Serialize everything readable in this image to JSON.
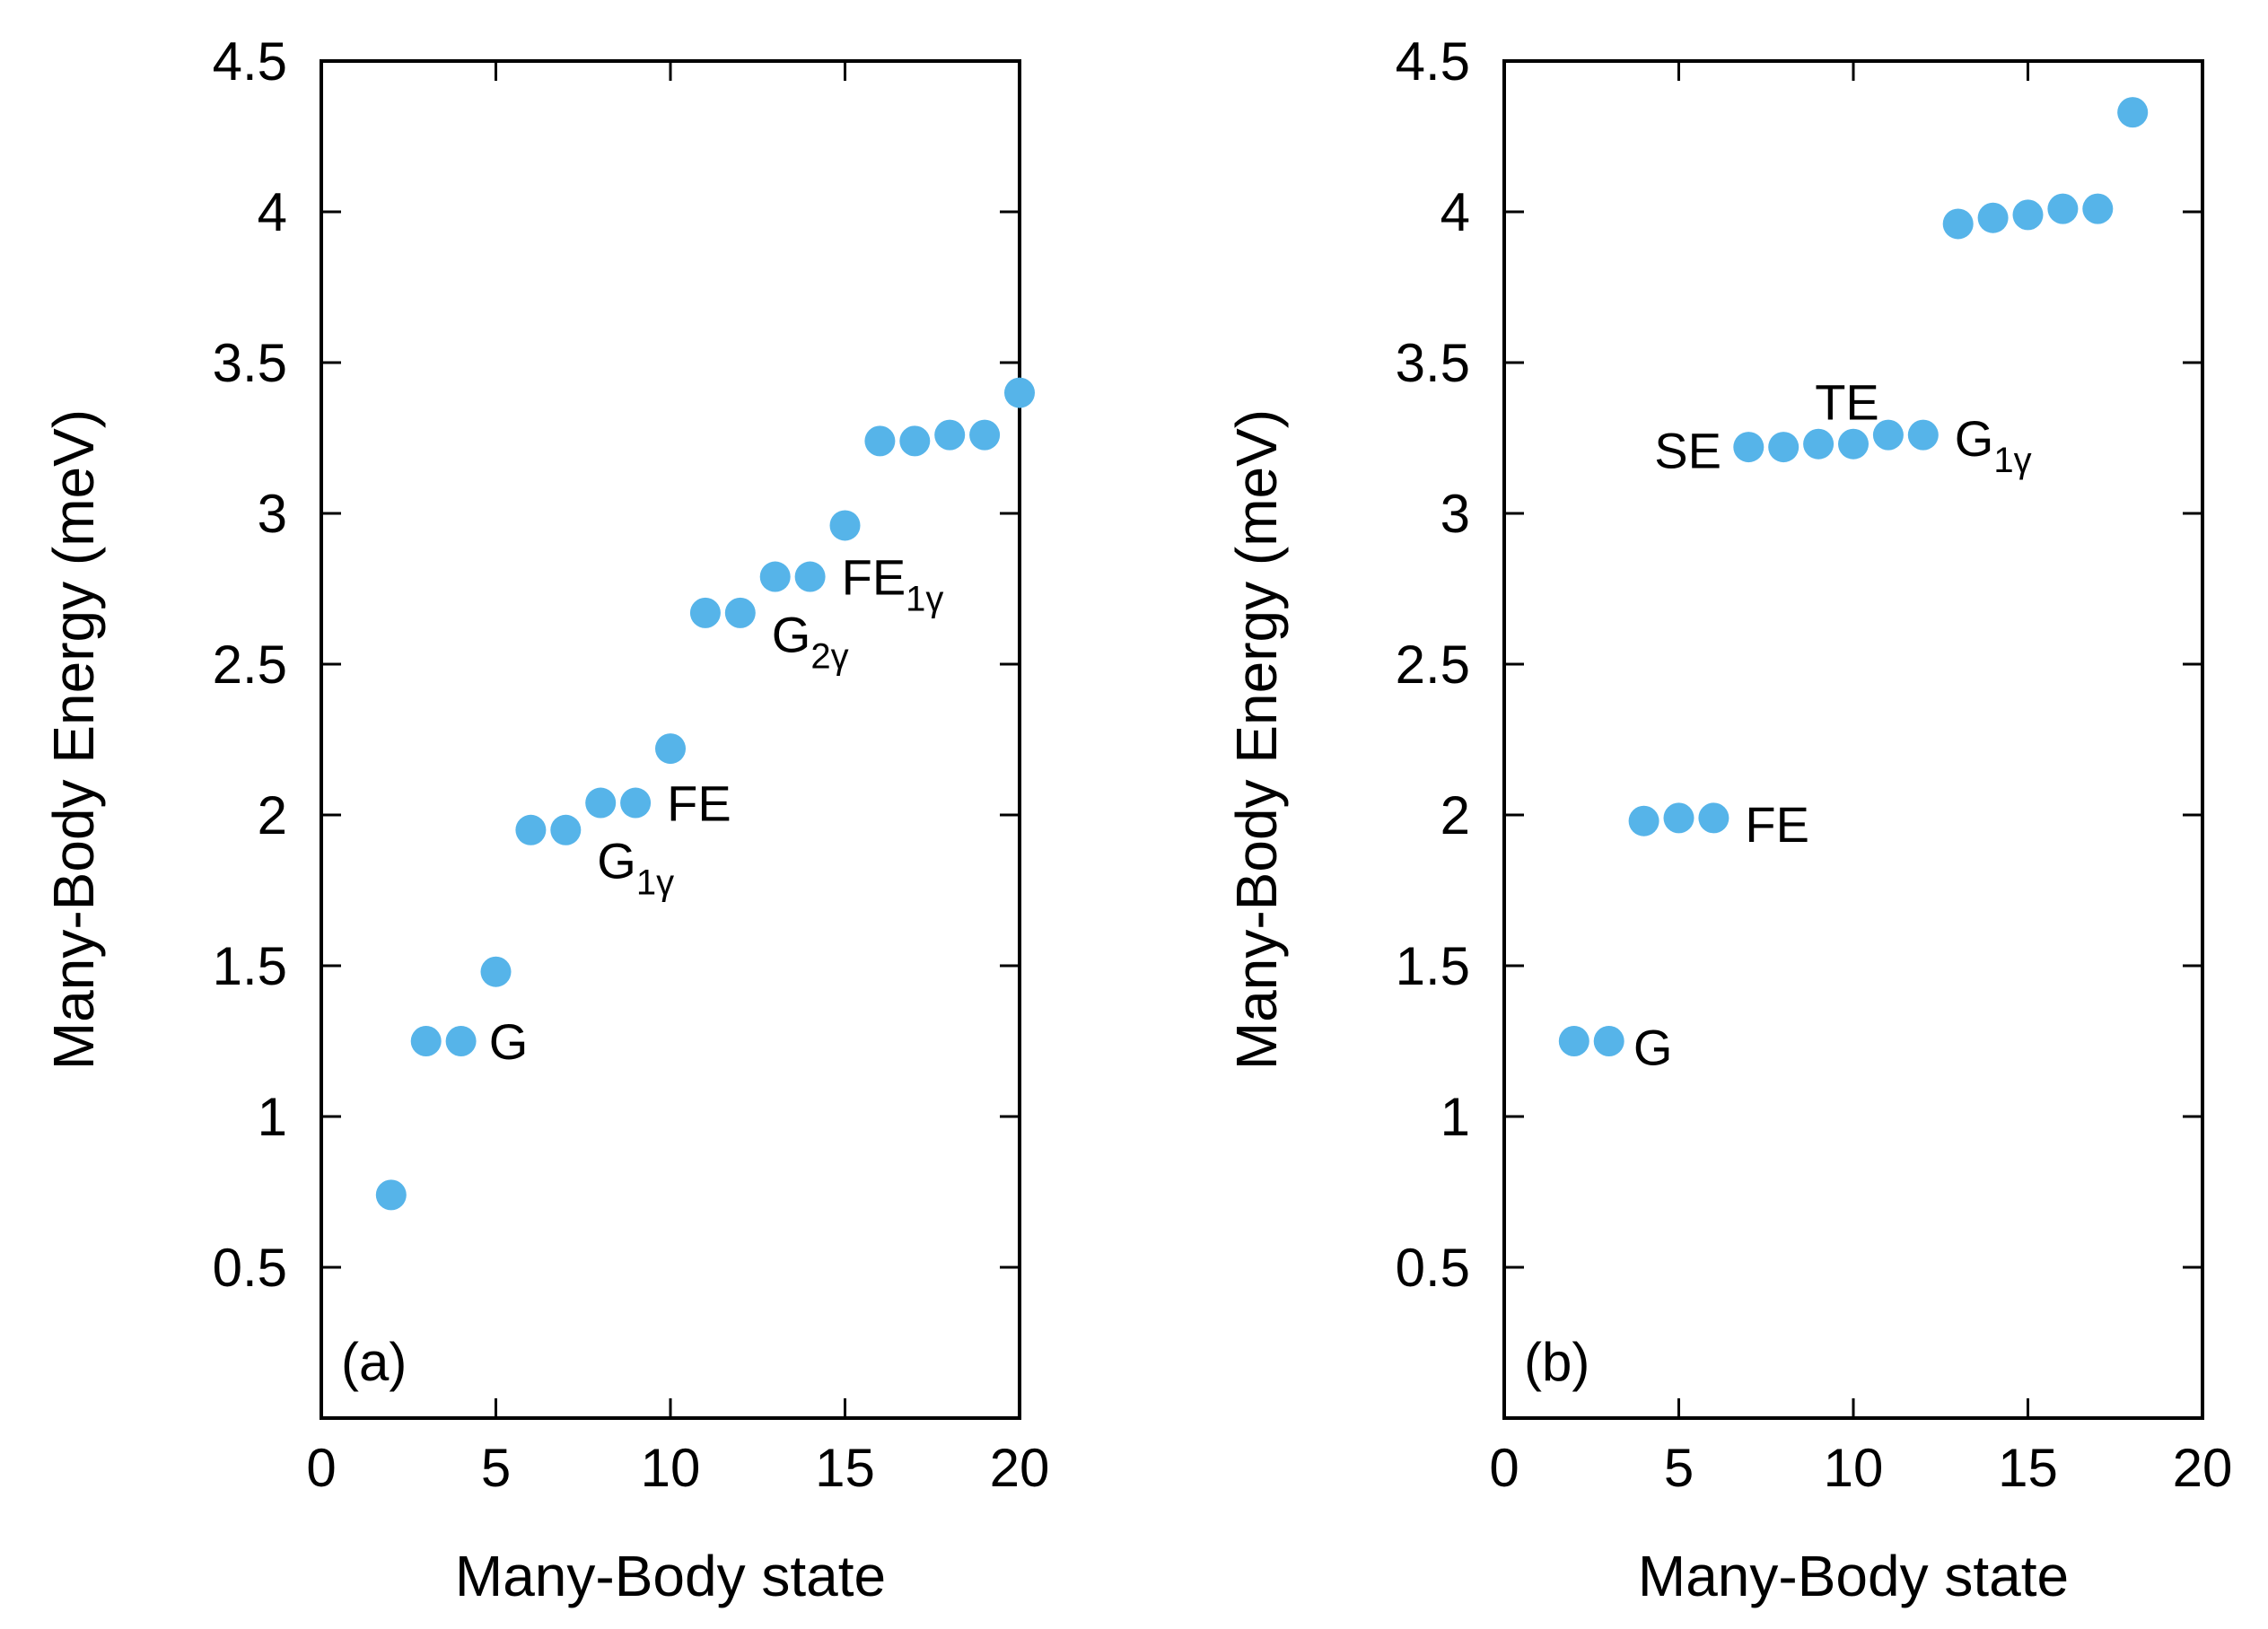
{
  "chart_data": [
    {
      "type": "scatter",
      "panel_label": "(a)",
      "xlabel": "Many-Body state",
      "ylabel": "Many-Body Energy (meV)",
      "xlim": [
        0,
        20
      ],
      "ylim": [
        0,
        4.5
      ],
      "x_ticks": [
        "0",
        "5",
        "10",
        "15",
        "20"
      ],
      "y_ticks": [
        "0.5",
        "1",
        "1.5",
        "2",
        "2.5",
        "3",
        "3.5",
        "4",
        "4.5"
      ],
      "point_color": "#56B4E9",
      "series": [
        {
          "x": [
            2,
            3,
            4,
            5,
            6,
            7,
            8,
            9,
            10,
            11,
            12,
            13,
            14,
            15,
            16,
            17,
            18,
            19,
            20
          ],
          "y": [
            0.74,
            1.25,
            1.25,
            1.48,
            1.95,
            1.95,
            2.04,
            2.04,
            2.22,
            2.67,
            2.67,
            2.79,
            2.79,
            2.96,
            3.24,
            3.24,
            3.26,
            3.26,
            3.4
          ]
        }
      ],
      "annotations": [
        {
          "base": "G",
          "sub": "",
          "x": 4.8,
          "y": 1.25
        },
        {
          "base": "G",
          "sub": "1γ",
          "x": 7.9,
          "y": 1.85
        },
        {
          "base": "FE",
          "sub": "",
          "x": 9.9,
          "y": 2.04
        },
        {
          "base": "G",
          "sub": "2γ",
          "x": 12.9,
          "y": 2.6
        },
        {
          "base": "FE",
          "sub": "1γ",
          "x": 14.9,
          "y": 2.79
        }
      ]
    },
    {
      "type": "scatter",
      "panel_label": "(b)",
      "xlabel": "Many-Body state",
      "ylabel": "Many-Body Energy (meV)",
      "xlim": [
        0,
        20
      ],
      "ylim": [
        0,
        4.5
      ],
      "x_ticks": [
        "0",
        "5",
        "10",
        "15",
        "20"
      ],
      "y_ticks": [
        "0.5",
        "1",
        "1.5",
        "2",
        "2.5",
        "3",
        "3.5",
        "4",
        "4.5"
      ],
      "point_color": "#56B4E9",
      "series": [
        {
          "x": [
            2,
            3,
            4,
            5,
            6,
            7,
            8,
            9,
            10,
            11,
            12,
            13,
            14,
            15,
            16,
            17,
            18
          ],
          "y": [
            1.25,
            1.25,
            1.98,
            1.99,
            1.99,
            3.22,
            3.22,
            3.23,
            3.23,
            3.26,
            3.26,
            3.96,
            3.98,
            3.99,
            4.01,
            4.01,
            4.33
          ]
        }
      ],
      "annotations": [
        {
          "base": "G",
          "sub": "",
          "x": 3.7,
          "y": 1.23
        },
        {
          "base": "FE",
          "sub": "",
          "x": 6.9,
          "y": 1.97
        },
        {
          "base": "SE",
          "sub": "",
          "x": 4.3,
          "y": 3.21
        },
        {
          "base": "TE",
          "sub": "",
          "x": 8.9,
          "y": 3.37
        },
        {
          "base": "G",
          "sub": "1γ",
          "x": 12.9,
          "y": 3.25
        }
      ]
    }
  ]
}
